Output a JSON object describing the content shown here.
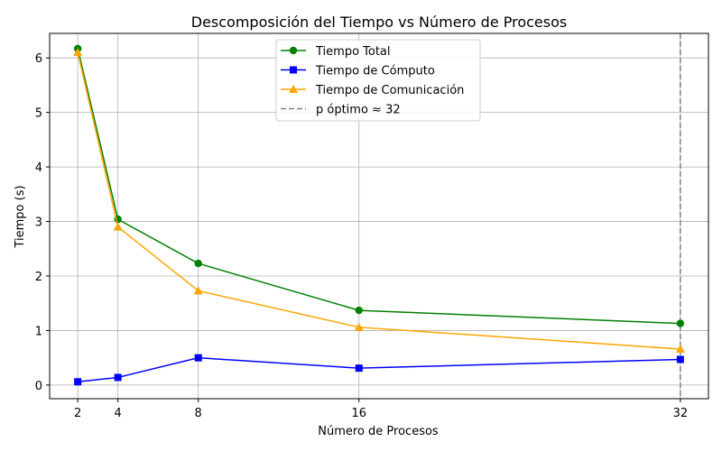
{
  "chart_data": {
    "type": "line",
    "title": "Descomposición del Tiempo vs Número de Procesos",
    "xlabel": "Número de Procesos",
    "ylabel": "Tiempo (s)",
    "xlim": [
      0.6,
      33.4
    ],
    "ylim": [
      -0.25,
      6.45
    ],
    "x_ticks": [
      2,
      4,
      8,
      16,
      32
    ],
    "y_ticks": [
      0,
      1,
      2,
      3,
      4,
      5,
      6
    ],
    "grid": true,
    "legend_position": "top-center",
    "x": [
      2,
      4,
      8,
      16,
      32
    ],
    "series": [
      {
        "name": "Tiempo Total",
        "color": "#008000",
        "marker": "circle",
        "values": [
          6.17,
          3.04,
          2.23,
          1.37,
          1.13
        ]
      },
      {
        "name": "Tiempo de Cómputo",
        "color": "#0000ff",
        "marker": "square",
        "values": [
          0.06,
          0.14,
          0.5,
          0.31,
          0.47
        ]
      },
      {
        "name": "Tiempo de Comunicación",
        "color": "#ffa500",
        "marker": "triangle",
        "values": [
          6.1,
          2.9,
          1.73,
          1.06,
          0.66
        ]
      }
    ],
    "vline": {
      "name": "p óptimo ≈ 32",
      "x": 32,
      "color": "#808080",
      "style": "dashed"
    }
  }
}
